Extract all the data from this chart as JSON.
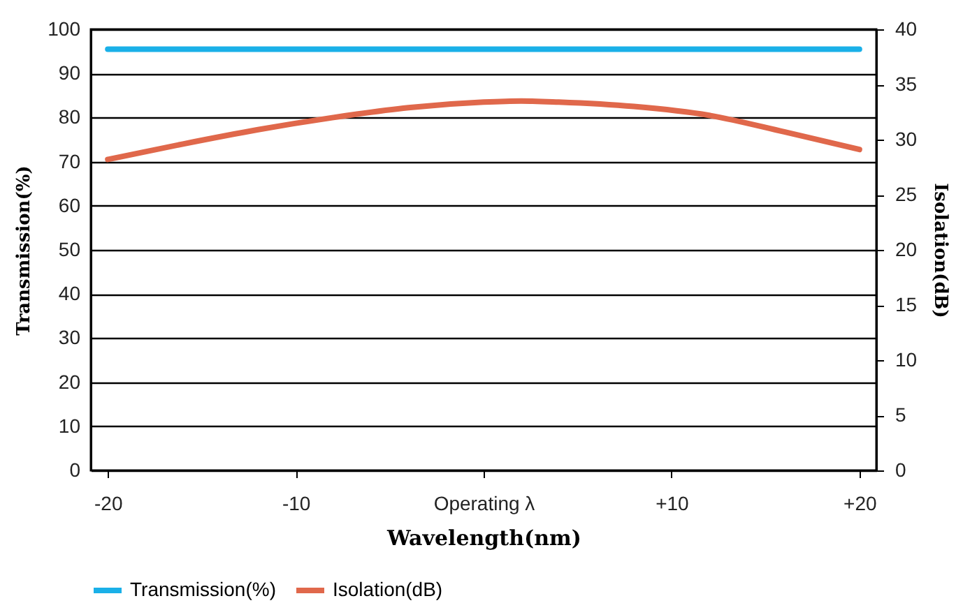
{
  "chart_data": {
    "type": "line",
    "xlabel": "Wavelength(nm)",
    "ylabel": "Transmission(%)",
    "y2label": "Isolation(dB)",
    "xlim": [
      -20.9,
      20.9
    ],
    "xticks": [
      {
        "value": -20,
        "label": "-20"
      },
      {
        "value": -10,
        "label": "-10"
      },
      {
        "value": 0,
        "label": "Operating λ"
      },
      {
        "value": 10,
        "label": "+10"
      },
      {
        "value": 20,
        "label": "+20"
      }
    ],
    "ylim": [
      0,
      100
    ],
    "yticks": [
      0,
      10,
      20,
      30,
      40,
      50,
      60,
      70,
      80,
      90,
      100
    ],
    "y2lim": [
      0,
      40
    ],
    "y2ticks": [
      0,
      5,
      10,
      15,
      20,
      25,
      30,
      35,
      40
    ],
    "grid": "y",
    "legend": "bottom",
    "marker": "none",
    "line_style": "solid",
    "series": [
      {
        "name": "Transmission(%)",
        "color": "#1ab0e8",
        "x": [
          -20,
          20
        ],
        "values": [
          95.5,
          95.5
        ]
      },
      {
        "name": "Isolation(dB)",
        "color": "#e0684b",
        "axis": "y2",
        "x": [
          -20,
          -16,
          -12,
          -8,
          -4,
          0,
          2,
          4,
          8,
          12,
          16,
          20
        ],
        "values": [
          28.2,
          29.6,
          30.9,
          32.0,
          32.9,
          33.4,
          33.5,
          33.4,
          33.0,
          32.2,
          30.7,
          29.1
        ]
      }
    ]
  }
}
